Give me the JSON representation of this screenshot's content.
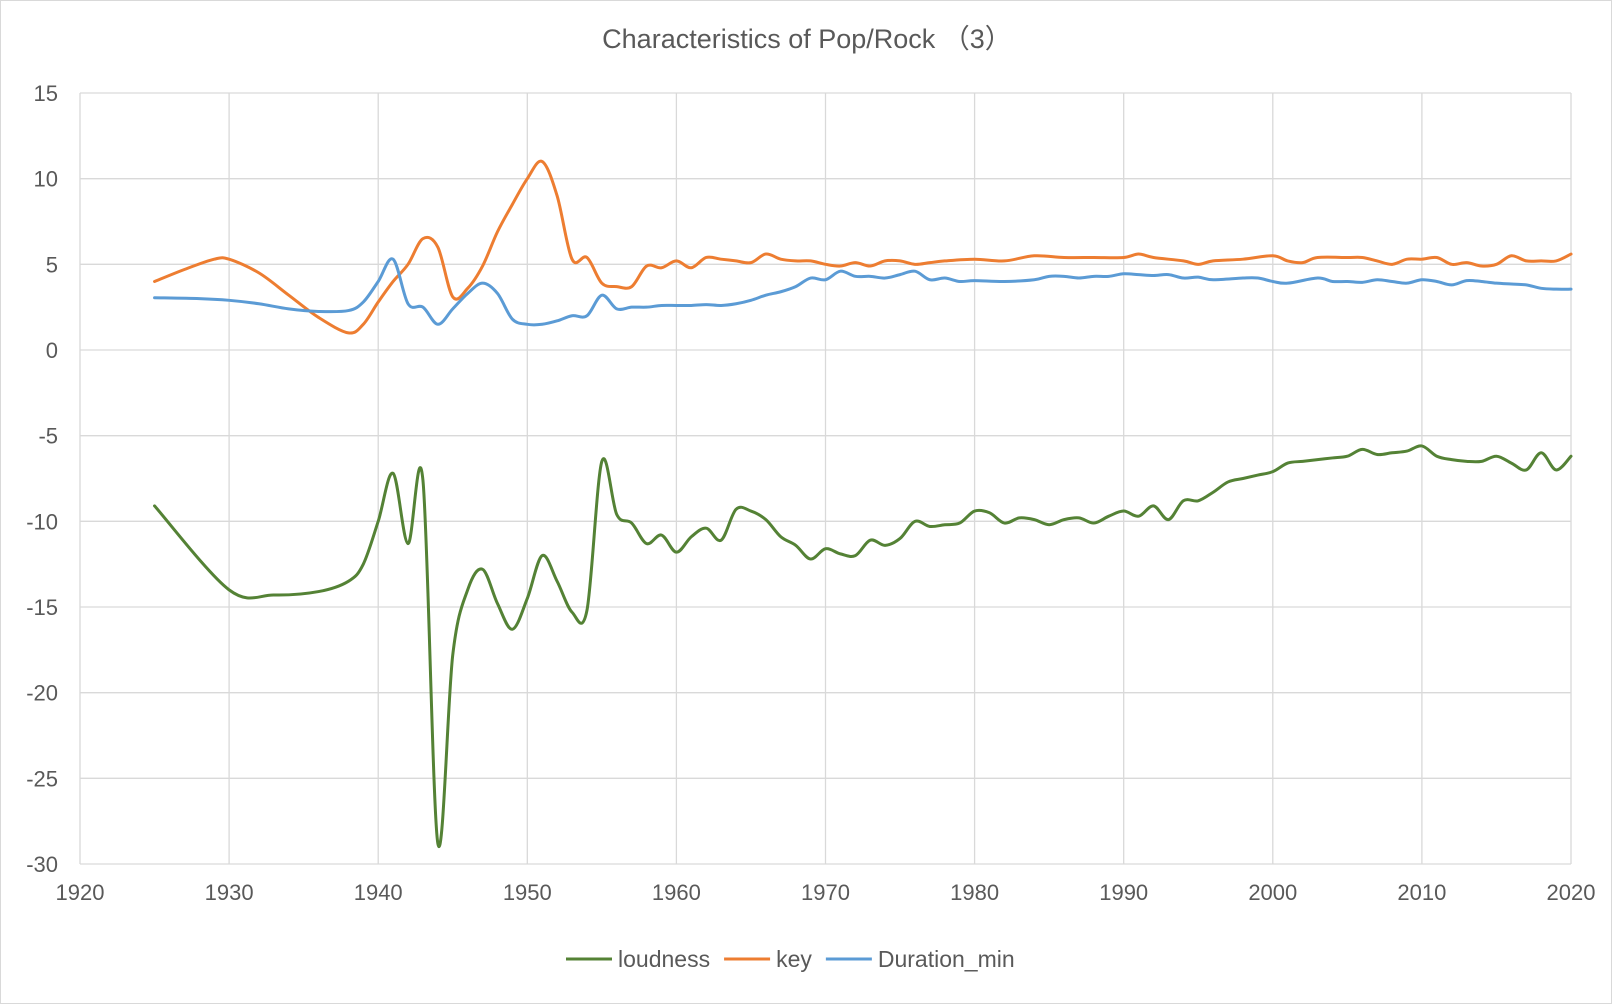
{
  "chart_data": {
    "type": "line",
    "title": "Characteristics of Pop/Rock （3）",
    "xlabel": "",
    "ylabel": "",
    "xlim": [
      1920,
      2020
    ],
    "ylim": [
      -30,
      15
    ],
    "x_ticks": [
      "1920",
      "1930",
      "1940",
      "1950",
      "1960",
      "1970",
      "1980",
      "1990",
      "2000",
      "2010",
      "2020"
    ],
    "y_ticks": [
      "15",
      "10",
      "5",
      "0",
      "-5",
      "-10",
      "-15",
      "-20",
      "-25",
      "-30"
    ],
    "grid": true,
    "legend_position": "bottom",
    "series": [
      {
        "name": "loudness",
        "color": "#548235",
        "points": [
          [
            1925,
            -9.1
          ],
          [
            1930,
            -14.0
          ],
          [
            1933,
            -14.3
          ],
          [
            1936,
            -14.1
          ],
          [
            1938,
            -13.5
          ],
          [
            1939,
            -12.5
          ],
          [
            1940,
            -10.0
          ],
          [
            1941,
            -7.2
          ],
          [
            1942,
            -11.3
          ],
          [
            1943,
            -7.6
          ],
          [
            1944,
            -28.8
          ],
          [
            1945,
            -17.8
          ],
          [
            1946,
            -14.0
          ],
          [
            1947,
            -12.8
          ],
          [
            1948,
            -14.8
          ],
          [
            1949,
            -16.3
          ],
          [
            1950,
            -14.5
          ],
          [
            1951,
            -12.0
          ],
          [
            1952,
            -13.5
          ],
          [
            1953,
            -15.3
          ],
          [
            1954,
            -15.2
          ],
          [
            1955,
            -6.5
          ],
          [
            1956,
            -9.6
          ],
          [
            1957,
            -10.1
          ],
          [
            1958,
            -11.3
          ],
          [
            1959,
            -10.8
          ],
          [
            1960,
            -11.8
          ],
          [
            1961,
            -10.9
          ],
          [
            1962,
            -10.4
          ],
          [
            1963,
            -11.1
          ],
          [
            1964,
            -9.3
          ],
          [
            1965,
            -9.4
          ],
          [
            1966,
            -9.9
          ],
          [
            1967,
            -10.9
          ],
          [
            1968,
            -11.4
          ],
          [
            1969,
            -12.2
          ],
          [
            1970,
            -11.6
          ],
          [
            1971,
            -11.9
          ],
          [
            1972,
            -12.0
          ],
          [
            1973,
            -11.1
          ],
          [
            1974,
            -11.4
          ],
          [
            1975,
            -11.0
          ],
          [
            1976,
            -10.0
          ],
          [
            1977,
            -10.3
          ],
          [
            1978,
            -10.2
          ],
          [
            1979,
            -10.1
          ],
          [
            1980,
            -9.4
          ],
          [
            1981,
            -9.5
          ],
          [
            1982,
            -10.1
          ],
          [
            1983,
            -9.8
          ],
          [
            1984,
            -9.9
          ],
          [
            1985,
            -10.2
          ],
          [
            1986,
            -9.9
          ],
          [
            1987,
            -9.8
          ],
          [
            1988,
            -10.1
          ],
          [
            1989,
            -9.7
          ],
          [
            1990,
            -9.4
          ],
          [
            1991,
            -9.7
          ],
          [
            1992,
            -9.1
          ],
          [
            1993,
            -9.9
          ],
          [
            1994,
            -8.8
          ],
          [
            1995,
            -8.8
          ],
          [
            1996,
            -8.3
          ],
          [
            1997,
            -7.7
          ],
          [
            1998,
            -7.5
          ],
          [
            1999,
            -7.3
          ],
          [
            2000,
            -7.1
          ],
          [
            2001,
            -6.6
          ],
          [
            2002,
            -6.5
          ],
          [
            2003,
            -6.4
          ],
          [
            2004,
            -6.3
          ],
          [
            2005,
            -6.2
          ],
          [
            2006,
            -5.8
          ],
          [
            2007,
            -6.1
          ],
          [
            2008,
            -6.0
          ],
          [
            2009,
            -5.9
          ],
          [
            2010,
            -5.6
          ],
          [
            2011,
            -6.2
          ],
          [
            2012,
            -6.4
          ],
          [
            2013,
            -6.5
          ],
          [
            2014,
            -6.5
          ],
          [
            2015,
            -6.2
          ],
          [
            2016,
            -6.6
          ],
          [
            2017,
            -7.0
          ],
          [
            2018,
            -6.0
          ],
          [
            2019,
            -7.0
          ],
          [
            2020,
            -6.2
          ]
        ]
      },
      {
        "name": "key",
        "color": "#ED7D31",
        "points": [
          [
            1925,
            4.0
          ],
          [
            1927,
            4.7
          ],
          [
            1929,
            5.3
          ],
          [
            1930,
            5.3
          ],
          [
            1932,
            4.5
          ],
          [
            1934,
            3.2
          ],
          [
            1936,
            1.9
          ],
          [
            1938,
            1.0
          ],
          [
            1939,
            1.5
          ],
          [
            1940,
            2.8
          ],
          [
            1941,
            4.0
          ],
          [
            1942,
            5.0
          ],
          [
            1943,
            6.5
          ],
          [
            1944,
            6.0
          ],
          [
            1945,
            3.1
          ],
          [
            1946,
            3.6
          ],
          [
            1947,
            4.9
          ],
          [
            1948,
            6.9
          ],
          [
            1949,
            8.5
          ],
          [
            1950,
            10.0
          ],
          [
            1951,
            11.0
          ],
          [
            1952,
            9.0
          ],
          [
            1953,
            5.3
          ],
          [
            1954,
            5.4
          ],
          [
            1955,
            3.9
          ],
          [
            1956,
            3.7
          ],
          [
            1957,
            3.7
          ],
          [
            1958,
            4.9
          ],
          [
            1959,
            4.8
          ],
          [
            1960,
            5.2
          ],
          [
            1961,
            4.8
          ],
          [
            1962,
            5.4
          ],
          [
            1963,
            5.3
          ],
          [
            1964,
            5.2
          ],
          [
            1965,
            5.1
          ],
          [
            1966,
            5.6
          ],
          [
            1967,
            5.3
          ],
          [
            1968,
            5.2
          ],
          [
            1969,
            5.2
          ],
          [
            1970,
            5.0
          ],
          [
            1971,
            4.9
          ],
          [
            1972,
            5.1
          ],
          [
            1973,
            4.9
          ],
          [
            1974,
            5.2
          ],
          [
            1975,
            5.2
          ],
          [
            1976,
            5.0
          ],
          [
            1977,
            5.1
          ],
          [
            1978,
            5.2
          ],
          [
            1980,
            5.3
          ],
          [
            1982,
            5.2
          ],
          [
            1984,
            5.5
          ],
          [
            1986,
            5.4
          ],
          [
            1988,
            5.4
          ],
          [
            1990,
            5.4
          ],
          [
            1991,
            5.6
          ],
          [
            1992,
            5.4
          ],
          [
            1994,
            5.2
          ],
          [
            1995,
            5.0
          ],
          [
            1996,
            5.2
          ],
          [
            1998,
            5.3
          ],
          [
            2000,
            5.5
          ],
          [
            2001,
            5.2
          ],
          [
            2002,
            5.1
          ],
          [
            2003,
            5.4
          ],
          [
            2005,
            5.4
          ],
          [
            2006,
            5.4
          ],
          [
            2007,
            5.2
          ],
          [
            2008,
            5.0
          ],
          [
            2009,
            5.3
          ],
          [
            2010,
            5.3
          ],
          [
            2011,
            5.4
          ],
          [
            2012,
            5.0
          ],
          [
            2013,
            5.1
          ],
          [
            2014,
            4.9
          ],
          [
            2015,
            5.0
          ],
          [
            2016,
            5.5
          ],
          [
            2017,
            5.2
          ],
          [
            2018,
            5.2
          ],
          [
            2019,
            5.2
          ],
          [
            2020,
            5.6
          ]
        ]
      },
      {
        "name": "Duration_min",
        "color": "#5B9BD5",
        "points": [
          [
            1925,
            3.05
          ],
          [
            1928,
            3.0
          ],
          [
            1930,
            2.9
          ],
          [
            1932,
            2.7
          ],
          [
            1934,
            2.4
          ],
          [
            1936,
            2.25
          ],
          [
            1938,
            2.3
          ],
          [
            1939,
            2.8
          ],
          [
            1940,
            4.0
          ],
          [
            1941,
            5.3
          ],
          [
            1942,
            2.7
          ],
          [
            1943,
            2.5
          ],
          [
            1944,
            1.5
          ],
          [
            1945,
            2.4
          ],
          [
            1946,
            3.3
          ],
          [
            1947,
            3.9
          ],
          [
            1948,
            3.3
          ],
          [
            1949,
            1.8
          ],
          [
            1950,
            1.5
          ],
          [
            1951,
            1.5
          ],
          [
            1952,
            1.7
          ],
          [
            1953,
            2.0
          ],
          [
            1954,
            2.0
          ],
          [
            1955,
            3.2
          ],
          [
            1956,
            2.4
          ],
          [
            1957,
            2.5
          ],
          [
            1958,
            2.5
          ],
          [
            1959,
            2.6
          ],
          [
            1960,
            2.6
          ],
          [
            1961,
            2.6
          ],
          [
            1962,
            2.65
          ],
          [
            1963,
            2.6
          ],
          [
            1964,
            2.7
          ],
          [
            1965,
            2.9
          ],
          [
            1966,
            3.2
          ],
          [
            1967,
            3.4
          ],
          [
            1968,
            3.7
          ],
          [
            1969,
            4.2
          ],
          [
            1970,
            4.1
          ],
          [
            1971,
            4.6
          ],
          [
            1972,
            4.3
          ],
          [
            1973,
            4.3
          ],
          [
            1974,
            4.2
          ],
          [
            1975,
            4.4
          ],
          [
            1976,
            4.6
          ],
          [
            1977,
            4.1
          ],
          [
            1978,
            4.2
          ],
          [
            1979,
            4.0
          ],
          [
            1980,
            4.05
          ],
          [
            1982,
            4.0
          ],
          [
            1984,
            4.1
          ],
          [
            1985,
            4.3
          ],
          [
            1986,
            4.3
          ],
          [
            1987,
            4.2
          ],
          [
            1988,
            4.3
          ],
          [
            1989,
            4.3
          ],
          [
            1990,
            4.45
          ],
          [
            1991,
            4.4
          ],
          [
            1992,
            4.35
          ],
          [
            1993,
            4.4
          ],
          [
            1994,
            4.2
          ],
          [
            1995,
            4.25
          ],
          [
            1996,
            4.1
          ],
          [
            1998,
            4.2
          ],
          [
            1999,
            4.2
          ],
          [
            2000,
            4.0
          ],
          [
            2001,
            3.9
          ],
          [
            2003,
            4.2
          ],
          [
            2004,
            4.0
          ],
          [
            2005,
            4.0
          ],
          [
            2006,
            3.95
          ],
          [
            2007,
            4.1
          ],
          [
            2008,
            4.0
          ],
          [
            2009,
            3.9
          ],
          [
            2010,
            4.1
          ],
          [
            2011,
            4.0
          ],
          [
            2012,
            3.8
          ],
          [
            2013,
            4.05
          ],
          [
            2014,
            4.0
          ],
          [
            2015,
            3.9
          ],
          [
            2016,
            3.85
          ],
          [
            2017,
            3.8
          ],
          [
            2018,
            3.6
          ],
          [
            2019,
            3.55
          ],
          [
            2020,
            3.55
          ]
        ]
      }
    ]
  }
}
